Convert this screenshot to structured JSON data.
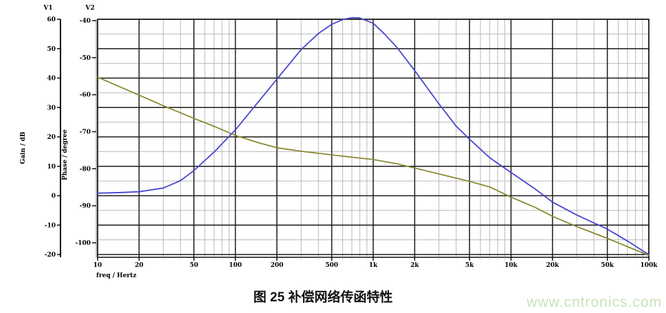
{
  "figure": {
    "caption": "图 25 补偿网络传函特性",
    "watermark": "www.cntronics.com"
  },
  "chart_data": {
    "type": "line",
    "title": "",
    "x_axis": {
      "label": "freq / Hertz",
      "scale": "log",
      "min": 10,
      "max": 100000,
      "major_ticks": [
        10,
        20,
        50,
        100,
        200,
        500,
        1000,
        2000,
        5000,
        10000,
        20000,
        50000,
        100000
      ],
      "major_tick_labels": [
        "10",
        "20",
        "50",
        "100",
        "200",
        "500",
        "1k",
        "2k",
        "5k",
        "10k",
        "20k",
        "50k",
        "100k"
      ]
    },
    "y_axes": [
      {
        "id": "V1",
        "title": "V1",
        "label": "Gain / dB",
        "ticks": [
          60,
          50,
          40,
          30,
          20,
          10,
          0,
          -10,
          -20
        ],
        "minor_step": 5
      },
      {
        "id": "V2",
        "title": "V2",
        "label": "Phase / degree",
        "ticks": [
          -40,
          -50,
          -60,
          -70,
          -80,
          -90,
          -100
        ]
      }
    ],
    "grid": {
      "major_color": "#1a1a1a",
      "minor_color": "#b8b8b8",
      "x_major_mantissas": [
        1,
        2,
        5
      ],
      "x_minor_mantissas": [
        3,
        4,
        6,
        7,
        8,
        9
      ]
    },
    "series": [
      {
        "name": "gain",
        "axis": "V1",
        "color": "#8a8a33",
        "points": [
          [
            10,
            40.3
          ],
          [
            20,
            34.2
          ],
          [
            30,
            30.6
          ],
          [
            50,
            26.3
          ],
          [
            70,
            23.6
          ],
          [
            100,
            20.5
          ],
          [
            150,
            17.9
          ],
          [
            200,
            16.3
          ],
          [
            300,
            15.1
          ],
          [
            500,
            13.9
          ],
          [
            700,
            13.1
          ],
          [
            1000,
            12.3
          ],
          [
            1500,
            10.8
          ],
          [
            2000,
            9.4
          ],
          [
            3000,
            7.4
          ],
          [
            5000,
            4.9
          ],
          [
            7000,
            3.0
          ],
          [
            10000,
            -0.5
          ],
          [
            15000,
            -4.0
          ],
          [
            20000,
            -7.0
          ],
          [
            30000,
            -10.5
          ],
          [
            50000,
            -14.5
          ],
          [
            70000,
            -17.3
          ],
          [
            100000,
            -20.3
          ]
        ]
      },
      {
        "name": "phase",
        "axis": "V2",
        "color": "#4747cf",
        "points": [
          [
            10,
            -86.6
          ],
          [
            15,
            -86.4
          ],
          [
            20,
            -86.2
          ],
          [
            30,
            -85.2
          ],
          [
            40,
            -83.2
          ],
          [
            50,
            -80.5
          ],
          [
            70,
            -75.5
          ],
          [
            100,
            -69.5
          ],
          [
            150,
            -61.5
          ],
          [
            200,
            -55.8
          ],
          [
            300,
            -47.8
          ],
          [
            400,
            -43.5
          ],
          [
            500,
            -41.0
          ],
          [
            600,
            -39.7
          ],
          [
            700,
            -39.2
          ],
          [
            800,
            -39.3
          ],
          [
            1000,
            -40.7
          ],
          [
            1200,
            -43.5
          ],
          [
            1500,
            -47.4
          ],
          [
            2000,
            -53.5
          ],
          [
            3000,
            -62.5
          ],
          [
            4000,
            -68.5
          ],
          [
            5000,
            -72.0
          ],
          [
            7000,
            -77.0
          ],
          [
            10000,
            -81.0
          ],
          [
            15000,
            -85.5
          ],
          [
            20000,
            -89.0
          ],
          [
            30000,
            -92.5
          ],
          [
            50000,
            -96.3
          ],
          [
            70000,
            -99.5
          ],
          [
            100000,
            -103.2
          ]
        ]
      }
    ]
  }
}
